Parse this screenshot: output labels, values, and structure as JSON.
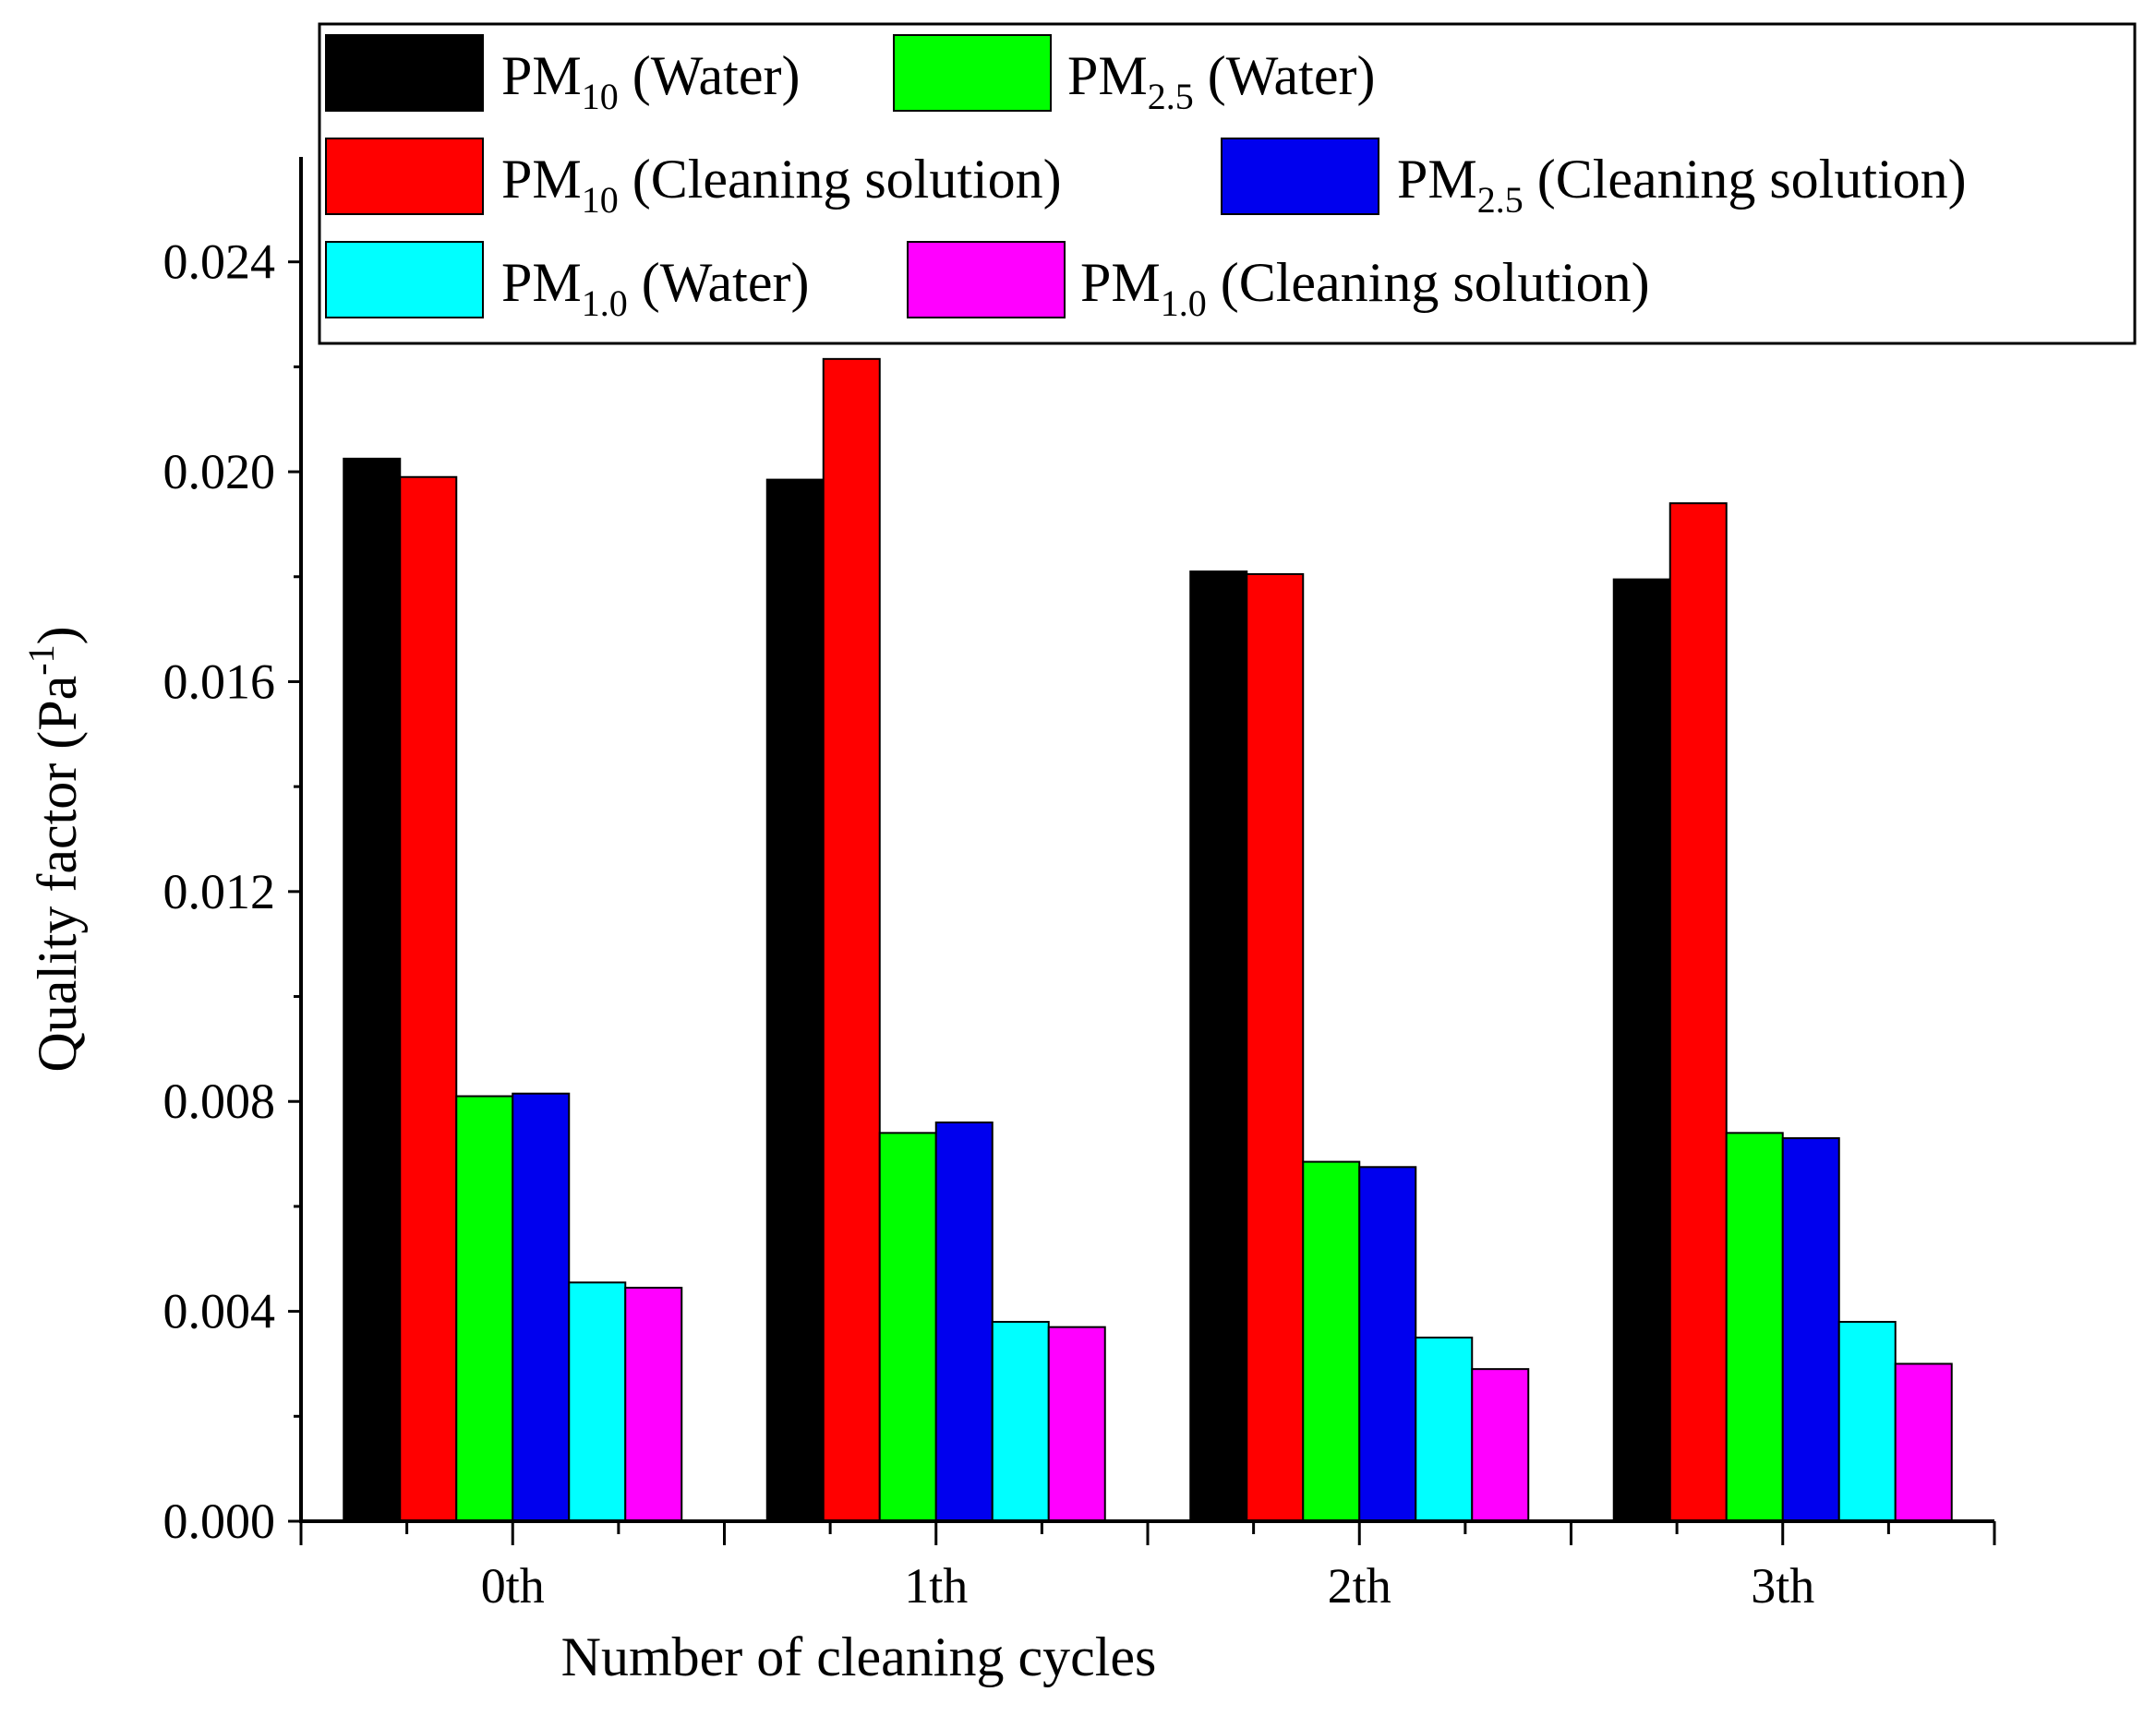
{
  "chart_data": {
    "type": "bar",
    "title": "",
    "xlabel": "Number of cleaning cycles",
    "ylabel": "Quality factor (Pa",
    "ylabel_superscript": "-1",
    "ylabel_suffix": ")",
    "ylim": [
      0,
      0.026
    ],
    "yticks": [
      "0.000",
      "0.004",
      "0.008",
      "0.012",
      "0.016",
      "0.020",
      "0.024"
    ],
    "categories": [
      "0th",
      "1th",
      "2th",
      "3th"
    ],
    "legend_position": "top",
    "series": [
      {
        "name": "PM10 (Water)",
        "base": "PM",
        "sub": "10",
        "suffix": " (Water)",
        "color": "#000000",
        "values": [
          0.02025,
          0.01985,
          0.0181,
          0.01795
        ]
      },
      {
        "name": "PM10 (Cleaning solution)",
        "base": "PM",
        "sub": "10",
        "suffix": " (Cleaning solution)",
        "color": "#ff0000",
        "values": [
          0.0199,
          0.02215,
          0.01805,
          0.0194
        ]
      },
      {
        "name": "PM2.5 (Water)",
        "base": "PM",
        "sub": "2.5",
        "suffix": " (Water)",
        "color": "#00ff00",
        "values": [
          0.0081,
          0.0074,
          0.00685,
          0.0074
        ]
      },
      {
        "name": "PM2.5 (Cleaning solution)",
        "base": "PM",
        "sub": "2.5",
        "suffix": " (Cleaning solution)",
        "color": "#0000ee",
        "values": [
          0.00815,
          0.0076,
          0.00675,
          0.0073
        ]
      },
      {
        "name": "PM1.0 (Water)",
        "base": "PM",
        "sub": "1.0",
        "suffix": " (Water)",
        "color": "#00ffff",
        "values": [
          0.00455,
          0.0038,
          0.0035,
          0.0038
        ]
      },
      {
        "name": "PM1.0 (Cleaning solution)",
        "base": "PM",
        "sub": "1.0",
        "suffix": " (Cleaning solution)",
        "color": "#ff00ff",
        "values": [
          0.00445,
          0.0037,
          0.0029,
          0.003
        ]
      }
    ]
  }
}
